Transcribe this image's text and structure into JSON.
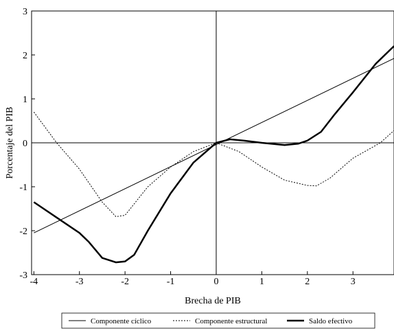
{
  "chart_data": {
    "type": "line",
    "x_label": "Brecha de PIB",
    "y_label": "Porcentaje del PIB",
    "xlim": [
      -4.05,
      3.9
    ],
    "ylim": [
      -3,
      3
    ],
    "xticks": [
      -4,
      -3,
      -2,
      -1,
      0,
      1,
      2,
      3
    ],
    "yticks": [
      -3,
      -2,
      -1,
      0,
      1,
      2,
      3
    ],
    "series": [
      {
        "name": "Componente cíclico",
        "color": "#000000",
        "style": "solid",
        "width": 1,
        "x": [
          -4,
          3.9
        ],
        "values": [
          -2.05,
          1.92
        ]
      },
      {
        "name": "Componente estructural",
        "color": "#000000",
        "style": "dotted",
        "width": 1,
        "x": [
          -4,
          -3.5,
          -3,
          -2.5,
          -2.2,
          -2,
          -1.5,
          -1,
          -0.5,
          0,
          0.5,
          1,
          1.5,
          2,
          2.2,
          2.5,
          3,
          3.6,
          3.9
        ],
        "values": [
          0.7,
          0,
          -0.6,
          -1.35,
          -1.68,
          -1.65,
          -1.0,
          -0.55,
          -0.2,
          0,
          -0.2,
          -0.55,
          -0.85,
          -0.97,
          -0.98,
          -0.8,
          -0.35,
          0,
          0.28
        ]
      },
      {
        "name": "Saldo efectivo",
        "color": "#000000",
        "style": "solid",
        "width": 2.5,
        "x": [
          -4,
          -3.5,
          -3,
          -2.8,
          -2.5,
          -2.2,
          -2,
          -1.8,
          -1.5,
          -1,
          -0.5,
          0,
          0.3,
          0.6,
          1,
          1.5,
          1.8,
          2,
          2.3,
          2.6,
          3,
          3.5,
          3.9
        ],
        "values": [
          -1.35,
          -1.7,
          -2.05,
          -2.25,
          -2.62,
          -2.72,
          -2.7,
          -2.55,
          -2.0,
          -1.15,
          -0.45,
          0,
          0.08,
          0.05,
          0,
          -0.05,
          -0.02,
          0.05,
          0.25,
          0.65,
          1.15,
          1.8,
          2.2
        ]
      }
    ]
  }
}
